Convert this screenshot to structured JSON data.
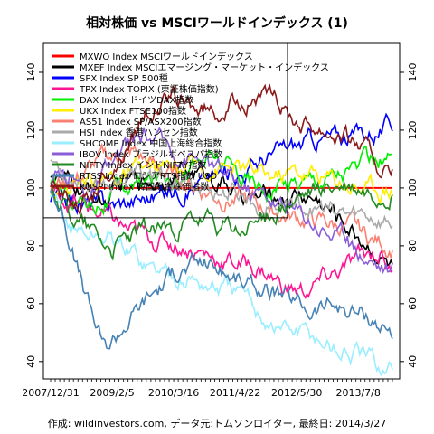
{
  "chart_data": {
    "type": "line",
    "title": "相対株価 vs MSCIワールドインデックス (1)",
    "caption": "作成: wildinvestors.com, データ元:トムソンロイター, 最終日: 2014/3/27",
    "x_labels": [
      "2007/12/31",
      "2009/2/5",
      "2010/3/16",
      "2011/4/22",
      "2012/5/30",
      "2013/7/8"
    ],
    "x_range": [
      "2007/12/31",
      "2014/3/27"
    ],
    "y_ticks": [
      40,
      60,
      80,
      100,
      120,
      140
    ],
    "ylim": [
      34,
      150
    ],
    "reference_line_y": 100,
    "legend_position": "top-left",
    "series": [
      {
        "name": "MXWO Index MSCIワールドインデックス",
        "color": "#ff0000",
        "points": [
          [
            0,
            100
          ],
          [
            1,
            100
          ]
        ]
      },
      {
        "name": "MXEF Index MSCIエマージング・マーケット・インデックス",
        "color": "#000000",
        "points": [
          [
            0,
            106
          ],
          [
            0.06,
            100
          ],
          [
            0.12,
            98
          ],
          [
            0.16,
            95
          ],
          [
            0.22,
            102
          ],
          [
            0.3,
            103
          ],
          [
            0.38,
            106
          ],
          [
            0.44,
            105
          ],
          [
            0.5,
            103
          ],
          [
            0.56,
            97
          ],
          [
            0.6,
            96
          ],
          [
            0.66,
            97
          ],
          [
            0.72,
            98
          ],
          [
            0.78,
            96
          ],
          [
            0.84,
            90
          ],
          [
            0.9,
            84
          ],
          [
            0.95,
            79
          ],
          [
            1,
            72
          ]
        ]
      },
      {
        "name": "SPX Index SP 500種",
        "color": "#0000ff",
        "points": [
          [
            0,
            96
          ],
          [
            0.08,
            95
          ],
          [
            0.16,
            94
          ],
          [
            0.24,
            96
          ],
          [
            0.32,
            98
          ],
          [
            0.4,
            101
          ],
          [
            0.48,
            104
          ],
          [
            0.56,
            106
          ],
          [
            0.62,
            110
          ],
          [
            0.7,
            114
          ],
          [
            0.78,
            117
          ],
          [
            0.86,
            118
          ],
          [
            0.94,
            120
          ],
          [
            1,
            122
          ]
        ]
      },
      {
        "name": "TPX Index TOPIX (東証株価指数)",
        "color": "#ff1493",
        "points": [
          [
            0,
            98
          ],
          [
            0.08,
            95
          ],
          [
            0.16,
            90
          ],
          [
            0.24,
            84
          ],
          [
            0.32,
            82
          ],
          [
            0.4,
            80
          ],
          [
            0.48,
            76
          ],
          [
            0.55,
            74
          ],
          [
            0.62,
            72
          ],
          [
            0.68,
            66
          ],
          [
            0.74,
            64
          ],
          [
            0.8,
            68
          ],
          [
            0.86,
            72
          ],
          [
            0.92,
            76
          ],
          [
            0.97,
            78
          ],
          [
            1,
            70
          ]
        ]
      },
      {
        "name": "DAX Index ドイツDAX指数",
        "color": "#00ee00",
        "points": [
          [
            0,
            100
          ],
          [
            0.08,
            96
          ],
          [
            0.16,
            96
          ],
          [
            0.24,
            100
          ],
          [
            0.32,
            104
          ],
          [
            0.4,
            108
          ],
          [
            0.48,
            110
          ],
          [
            0.56,
            104
          ],
          [
            0.62,
            100
          ],
          [
            0.7,
            102
          ],
          [
            0.78,
            104
          ],
          [
            0.86,
            106
          ],
          [
            0.94,
            108
          ],
          [
            1,
            110
          ]
        ]
      },
      {
        "name": "UKX Index FTSE100指数",
        "color": "#ffee00",
        "points": [
          [
            0,
            100
          ],
          [
            0.08,
            102
          ],
          [
            0.16,
            104
          ],
          [
            0.24,
            104
          ],
          [
            0.32,
            106
          ],
          [
            0.4,
            106
          ],
          [
            0.48,
            108
          ],
          [
            0.56,
            106
          ],
          [
            0.64,
            104
          ],
          [
            0.72,
            106
          ],
          [
            0.8,
            104
          ],
          [
            0.88,
            102
          ],
          [
            0.94,
            100
          ],
          [
            1,
            101
          ]
        ]
      },
      {
        "name": "AS51 Index SP/ASX200指数",
        "color": "#fa8072",
        "points": [
          [
            0,
            100
          ],
          [
            0.08,
            104
          ],
          [
            0.16,
            110
          ],
          [
            0.24,
            112
          ],
          [
            0.32,
            106
          ],
          [
            0.4,
            102
          ],
          [
            0.48,
            98
          ],
          [
            0.56,
            96
          ],
          [
            0.64,
            92
          ],
          [
            0.72,
            90
          ],
          [
            0.8,
            88
          ],
          [
            0.88,
            86
          ],
          [
            0.94,
            82
          ],
          [
            1,
            80
          ]
        ]
      },
      {
        "name": "HSI Index 香港ハンセン指数",
        "color": "#aaaaaa",
        "points": [
          [
            0,
            110
          ],
          [
            0.06,
            104
          ],
          [
            0.12,
            102
          ],
          [
            0.2,
            104
          ],
          [
            0.28,
            104
          ],
          [
            0.36,
            102
          ],
          [
            0.44,
            100
          ],
          [
            0.52,
            98
          ],
          [
            0.58,
            96
          ],
          [
            0.64,
            94
          ],
          [
            0.7,
            96
          ],
          [
            0.76,
            94
          ],
          [
            0.82,
            92
          ],
          [
            0.88,
            90
          ],
          [
            0.94,
            90
          ],
          [
            1,
            88
          ]
        ]
      },
      {
        "name": "SHCOMP Index 中国上海総合指数",
        "color": "#99eeff",
        "points": [
          [
            0,
            96
          ],
          [
            0.06,
            86
          ],
          [
            0.12,
            84
          ],
          [
            0.18,
            82
          ],
          [
            0.24,
            78
          ],
          [
            0.3,
            72
          ],
          [
            0.38,
            70
          ],
          [
            0.46,
            66
          ],
          [
            0.54,
            64
          ],
          [
            0.6,
            58
          ],
          [
            0.66,
            52
          ],
          [
            0.72,
            50
          ],
          [
            0.78,
            48
          ],
          [
            0.84,
            44
          ],
          [
            0.9,
            42
          ],
          [
            0.96,
            38
          ],
          [
            1,
            37
          ]
        ]
      },
      {
        "name": "IBOV Index ブラジルボベスパ指数",
        "color": "#8a5ed9",
        "points": [
          [
            0,
            100
          ],
          [
            0.06,
            104
          ],
          [
            0.12,
            98
          ],
          [
            0.2,
            110
          ],
          [
            0.28,
            118
          ],
          [
            0.36,
            114
          ],
          [
            0.44,
            110
          ],
          [
            0.52,
            104
          ],
          [
            0.58,
            100
          ],
          [
            0.64,
            98
          ],
          [
            0.7,
            92
          ],
          [
            0.76,
            90
          ],
          [
            0.82,
            86
          ],
          [
            0.88,
            80
          ],
          [
            0.94,
            76
          ],
          [
            1,
            72
          ]
        ]
      },
      {
        "name": "NIFTY Index インドNIFTY指数",
        "color": "#228b22",
        "points": [
          [
            0,
            100
          ],
          [
            0.06,
            92
          ],
          [
            0.12,
            86
          ],
          [
            0.18,
            80
          ],
          [
            0.26,
            84
          ],
          [
            0.34,
            86
          ],
          [
            0.42,
            88
          ],
          [
            0.5,
            86
          ],
          [
            0.56,
            84
          ],
          [
            0.62,
            90
          ],
          [
            0.7,
            94
          ],
          [
            0.78,
            98
          ],
          [
            0.86,
            100
          ],
          [
            0.94,
            98
          ],
          [
            1,
            100
          ]
        ]
      },
      {
        "name": "RTSS Index ロシアRTS指数 USD",
        "color": "#4682b4",
        "points": [
          [
            0,
            100
          ],
          [
            0.04,
            90
          ],
          [
            0.08,
            72
          ],
          [
            0.12,
            56
          ],
          [
            0.16,
            44
          ],
          [
            0.22,
            54
          ],
          [
            0.3,
            64
          ],
          [
            0.38,
            72
          ],
          [
            0.46,
            74
          ],
          [
            0.52,
            70
          ],
          [
            0.58,
            66
          ],
          [
            0.64,
            64
          ],
          [
            0.7,
            60
          ],
          [
            0.76,
            58
          ],
          [
            0.82,
            60
          ],
          [
            0.88,
            58
          ],
          [
            0.94,
            56
          ],
          [
            1,
            50
          ]
        ]
      },
      {
        "name": "KOSPI Index 韓国総合株価指数",
        "color": "#8b1a1a",
        "points": [
          [
            0,
            100
          ],
          [
            0.06,
            96
          ],
          [
            0.12,
            98
          ],
          [
            0.2,
            110
          ],
          [
            0.28,
            128
          ],
          [
            0.36,
            130
          ],
          [
            0.44,
            126
          ],
          [
            0.52,
            128
          ],
          [
            0.6,
            132
          ],
          [
            0.66,
            128
          ],
          [
            0.72,
            124
          ],
          [
            0.78,
            122
          ],
          [
            0.84,
            120
          ],
          [
            0.9,
            116
          ],
          [
            0.96,
            108
          ],
          [
            1,
            104
          ]
        ]
      }
    ]
  }
}
